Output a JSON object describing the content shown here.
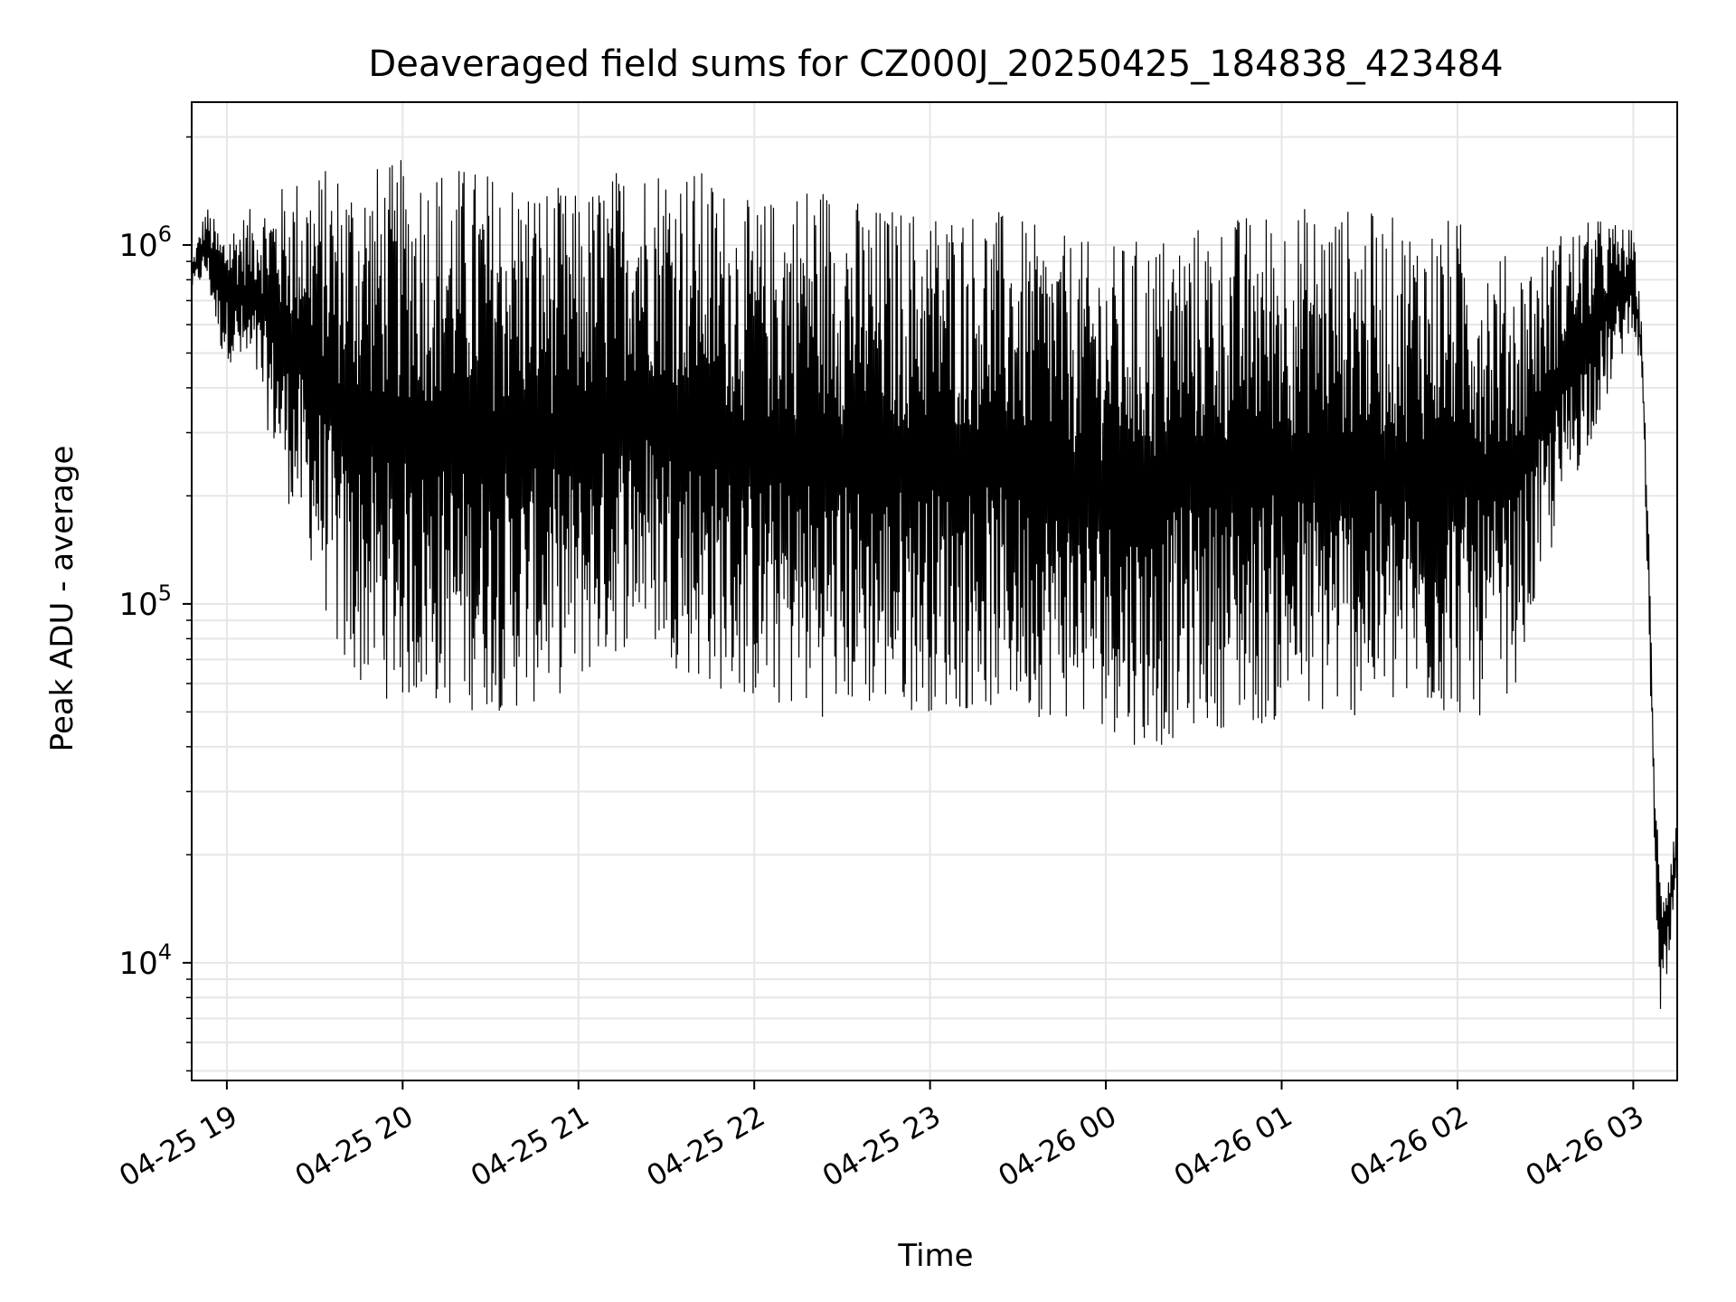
{
  "chart_data": {
    "type": "line",
    "title": "Deaveraged field sums for CZ000J_20250425_184838_423484",
    "xlabel": "Time",
    "ylabel": "Peak ADU - average",
    "y_scale": "log",
    "grid": true,
    "line_color": "#000000",
    "grid_color": "#e6e6e6",
    "xlim": [
      "2025-04-25 18:48",
      "2025-04-26 03:15"
    ],
    "ylim": [
      4700,
      2500000
    ],
    "x_ticks": [
      {
        "t": "2025-04-25 19:00",
        "label": "04-25 19"
      },
      {
        "t": "2025-04-25 20:00",
        "label": "04-25 20"
      },
      {
        "t": "2025-04-25 21:00",
        "label": "04-25 21"
      },
      {
        "t": "2025-04-25 22:00",
        "label": "04-25 22"
      },
      {
        "t": "2025-04-25 23:00",
        "label": "04-25 23"
      },
      {
        "t": "2025-04-26 00:00",
        "label": "04-26 00"
      },
      {
        "t": "2025-04-26 01:00",
        "label": "04-26 01"
      },
      {
        "t": "2025-04-26 02:00",
        "label": "04-26 02"
      },
      {
        "t": "2025-04-26 03:00",
        "label": "04-26 03"
      }
    ],
    "y_ticks": [
      {
        "value": 10000,
        "base": "10",
        "exp": "4"
      },
      {
        "value": 100000,
        "base": "10",
        "exp": "5"
      },
      {
        "value": 1000000,
        "base": "10",
        "exp": "6"
      }
    ],
    "series": [
      {
        "values_note": "approximate upper and lower envelope of the dense oscillating series",
        "upper": [
          [
            "2025-04-25 18:48",
            900000
          ],
          [
            "2025-04-25 18:53",
            1300000
          ],
          [
            "2025-04-25 18:58",
            1100000
          ],
          [
            "2025-04-25 19:10",
            1300000
          ],
          [
            "2025-04-25 19:25",
            1600000
          ],
          [
            "2025-04-25 19:40",
            1700000
          ],
          [
            "2025-04-25 19:55",
            1700000
          ],
          [
            "2025-04-25 20:05",
            1800000
          ],
          [
            "2025-04-25 20:20",
            1700000
          ],
          [
            "2025-04-25 20:40",
            1600000
          ],
          [
            "2025-04-25 21:00",
            1400000
          ],
          [
            "2025-04-25 21:15",
            1700000
          ],
          [
            "2025-04-25 21:30",
            1800000
          ],
          [
            "2025-04-25 21:45",
            1600000
          ],
          [
            "2025-04-25 22:00",
            1300000
          ],
          [
            "2025-04-25 22:20",
            1600000
          ],
          [
            "2025-04-25 22:40",
            1300000
          ],
          [
            "2025-04-25 23:00",
            1300000
          ],
          [
            "2025-04-25 23:20",
            1300000
          ],
          [
            "2025-04-25 23:40",
            1100000
          ],
          [
            "2025-04-26 00:00",
            1000000
          ],
          [
            "2025-04-26 00:20",
            1100000
          ],
          [
            "2025-04-26 00:40",
            1200000
          ],
          [
            "2025-04-26 01:00",
            1300000
          ],
          [
            "2025-04-26 01:20",
            1300000
          ],
          [
            "2025-04-26 01:40",
            1200000
          ],
          [
            "2025-04-26 02:00",
            1200000
          ],
          [
            "2025-04-26 02:20",
            900000
          ],
          [
            "2025-04-26 02:35",
            1100000
          ],
          [
            "2025-04-26 02:50",
            1200000
          ],
          [
            "2025-04-26 03:00",
            1100000
          ],
          [
            "2025-04-26 03:03",
            600000
          ],
          [
            "2025-04-26 03:05",
            200000
          ],
          [
            "2025-04-26 03:07",
            40000
          ],
          [
            "2025-04-26 03:09",
            19000
          ],
          [
            "2025-04-26 03:12",
            20000
          ],
          [
            "2025-04-26 03:15",
            28000
          ]
        ],
        "lower": [
          [
            "2025-04-25 18:48",
            750000
          ],
          [
            "2025-04-25 18:53",
            800000
          ],
          [
            "2025-04-25 18:58",
            500000
          ],
          [
            "2025-04-25 19:10",
            400000
          ],
          [
            "2025-04-25 19:20",
            200000
          ],
          [
            "2025-04-25 19:30",
            120000
          ],
          [
            "2025-04-25 19:40",
            60000
          ],
          [
            "2025-04-25 20:00",
            52000
          ],
          [
            "2025-04-25 20:20",
            50000
          ],
          [
            "2025-04-25 20:40",
            50000
          ],
          [
            "2025-04-25 21:00",
            58000
          ],
          [
            "2025-04-25 21:20",
            80000
          ],
          [
            "2025-04-25 21:40",
            60000
          ],
          [
            "2025-04-25 22:00",
            52000
          ],
          [
            "2025-04-25 22:20",
            48000
          ],
          [
            "2025-04-25 22:40",
            50000
          ],
          [
            "2025-04-25 23:00",
            50000
          ],
          [
            "2025-04-25 23:20",
            50000
          ],
          [
            "2025-04-25 23:40",
            48000
          ],
          [
            "2025-04-26 00:00",
            45000
          ],
          [
            "2025-04-26 00:15",
            38000
          ],
          [
            "2025-04-26 00:30",
            45000
          ],
          [
            "2025-04-26 00:50",
            45000
          ],
          [
            "2025-04-26 01:10",
            47000
          ],
          [
            "2025-04-26 01:30",
            48000
          ],
          [
            "2025-04-26 01:50",
            48000
          ],
          [
            "2025-04-26 02:10",
            48000
          ],
          [
            "2025-04-26 02:20",
            60000
          ],
          [
            "2025-04-26 02:30",
            120000
          ],
          [
            "2025-04-26 02:40",
            220000
          ],
          [
            "2025-04-26 02:50",
            350000
          ],
          [
            "2025-04-26 03:00",
            600000
          ],
          [
            "2025-04-26 03:03",
            400000
          ],
          [
            "2025-04-26 03:05",
            100000
          ],
          [
            "2025-04-26 03:07",
            25000
          ],
          [
            "2025-04-26 03:09",
            6000
          ],
          [
            "2025-04-26 03:12",
            9000
          ],
          [
            "2025-04-26 03:15",
            16000
          ]
        ]
      }
    ]
  }
}
